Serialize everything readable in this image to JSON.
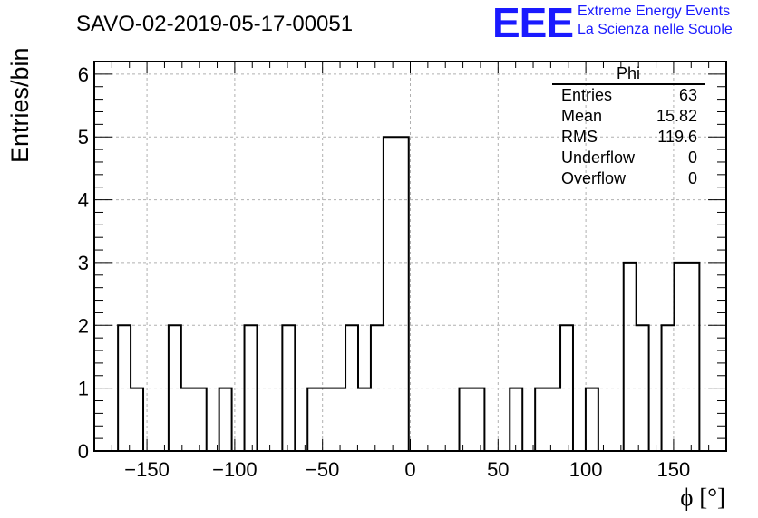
{
  "chart_data": {
    "type": "bar",
    "title": "SAVO-02-2019-05-17-00051",
    "xlabel": "ϕ [°]",
    "ylabel": "Entries/bin",
    "xlim": [
      -180,
      180
    ],
    "ylim": [
      0,
      6.2
    ],
    "bin_width": 7.2,
    "bin_edges_start": -166.5,
    "values": [
      2,
      1,
      0,
      0,
      2,
      1,
      1,
      0,
      1,
      0,
      2,
      0,
      0,
      2,
      0,
      1,
      1,
      1,
      2,
      1,
      2,
      5,
      5,
      0,
      0,
      0,
      0,
      1,
      1,
      0,
      0,
      1,
      0,
      1,
      1,
      2,
      0,
      1,
      0,
      0,
      3,
      2,
      0,
      2,
      3,
      3
    ],
    "x_ticks": [
      "−150",
      "−100",
      "−50",
      "0",
      "50",
      "100",
      "150"
    ],
    "y_ticks": [
      "0",
      "1",
      "2",
      "3",
      "4",
      "5",
      "6"
    ],
    "grid": true,
    "histogram_name": "Phi",
    "stats": [
      {
        "label": "Entries",
        "value": "63"
      },
      {
        "label": "Mean",
        "value": "15.82"
      },
      {
        "label": "RMS",
        "value": "119.6"
      },
      {
        "label": "Underflow",
        "value": "0"
      },
      {
        "label": "Overflow",
        "value": "0"
      }
    ]
  },
  "logo": {
    "mark": "EEE",
    "line1": "Extreme Energy Events",
    "line2": "La Scienza nelle Scuole"
  },
  "colors": {
    "line": "#000000",
    "grid": "#b0b0b0",
    "logo": "#1a1aff"
  }
}
